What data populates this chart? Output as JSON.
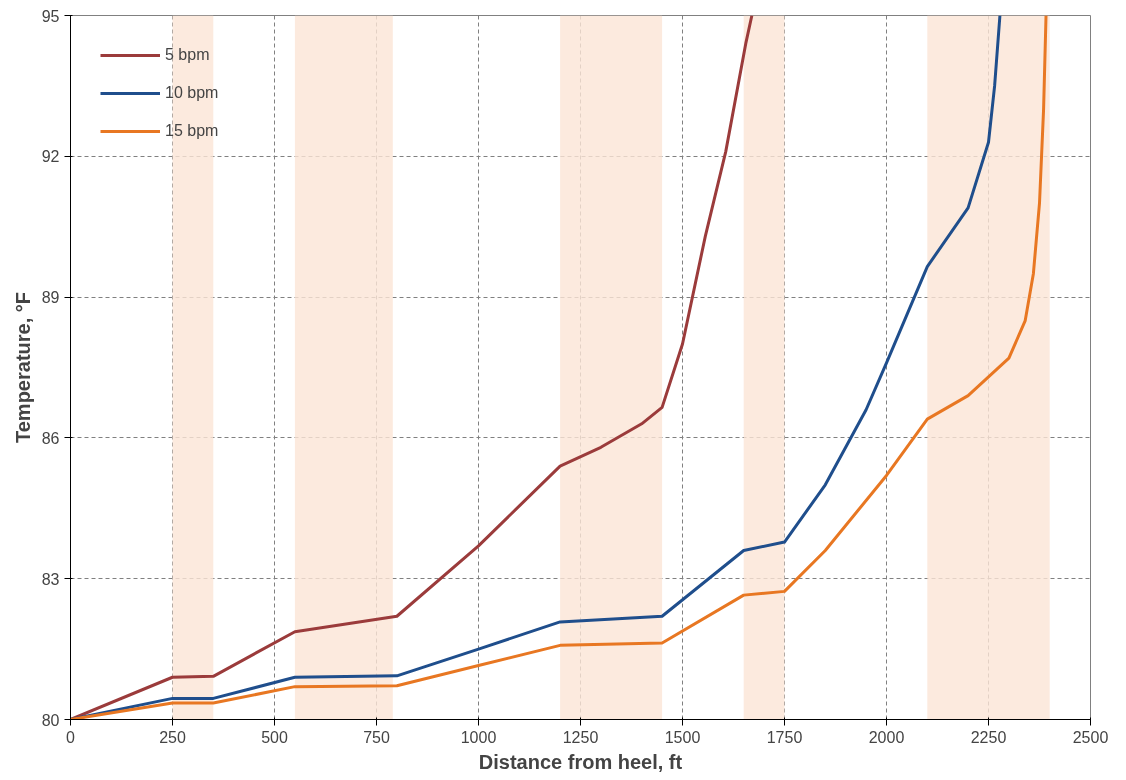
{
  "chart_data": {
    "type": "line",
    "xlabel": "Distance from heel, ft",
    "ylabel": "Temperature, °F",
    "xlim": [
      0,
      2500
    ],
    "xticks": [
      0,
      250,
      500,
      750,
      1000,
      1250,
      1500,
      1750,
      2000,
      2250,
      2500
    ],
    "ylim": [
      80,
      95
    ],
    "yticks": [
      80,
      83,
      86,
      89,
      92,
      95
    ],
    "grid": true,
    "legend": "top left",
    "line_style": "solid",
    "bands": [
      {
        "axis": "x",
        "from": 250,
        "to": 350,
        "color": "#fbe5d6"
      },
      {
        "axis": "x",
        "from": 550,
        "to": 790,
        "color": "#fbe5d6"
      },
      {
        "axis": "x",
        "from": 1200,
        "to": 1450,
        "color": "#fbe5d6"
      },
      {
        "axis": "x",
        "from": 1650,
        "to": 1750,
        "color": "#fbe5d6"
      },
      {
        "axis": "x",
        "from": 2100,
        "to": 2400,
        "color": "#fbe5d6"
      }
    ],
    "series": [
      {
        "name": "5 bpm",
        "color": "#9b3b3b",
        "x": [
          0,
          250,
          350,
          550,
          800,
          1000,
          1200,
          1300,
          1400,
          1450,
          1500,
          1556,
          1606,
          1655,
          1670
        ],
        "values": [
          80,
          80.9,
          80.92,
          81.87,
          82.2,
          83.7,
          85.4,
          85.8,
          86.3,
          86.65,
          88.0,
          90.3,
          92.1,
          94.4,
          95
        ]
      },
      {
        "name": "10 bpm",
        "color": "#1f4e8c",
        "x": [
          0,
          250,
          350,
          550,
          800,
          1000,
          1200,
          1450,
          1650,
          1750,
          1850,
          1950,
          2000,
          2100,
          2200,
          2250,
          2265,
          2278
        ],
        "values": [
          80,
          80.45,
          80.45,
          80.9,
          80.93,
          81.5,
          82.08,
          82.2,
          83.6,
          83.78,
          85.0,
          86.6,
          87.6,
          89.65,
          90.9,
          92.3,
          93.5,
          95
        ]
      },
      {
        "name": "15 bpm",
        "color": "#e87722",
        "x": [
          0,
          250,
          350,
          550,
          800,
          1000,
          1200,
          1450,
          1650,
          1750,
          1850,
          2000,
          2100,
          2200,
          2300,
          2340,
          2360,
          2375,
          2385,
          2391
        ],
        "values": [
          80,
          80.35,
          80.35,
          80.7,
          80.72,
          81.15,
          81.58,
          81.63,
          82.65,
          82.73,
          83.6,
          85.2,
          86.4,
          86.9,
          87.7,
          88.5,
          89.5,
          91.0,
          93.0,
          95
        ]
      }
    ]
  }
}
